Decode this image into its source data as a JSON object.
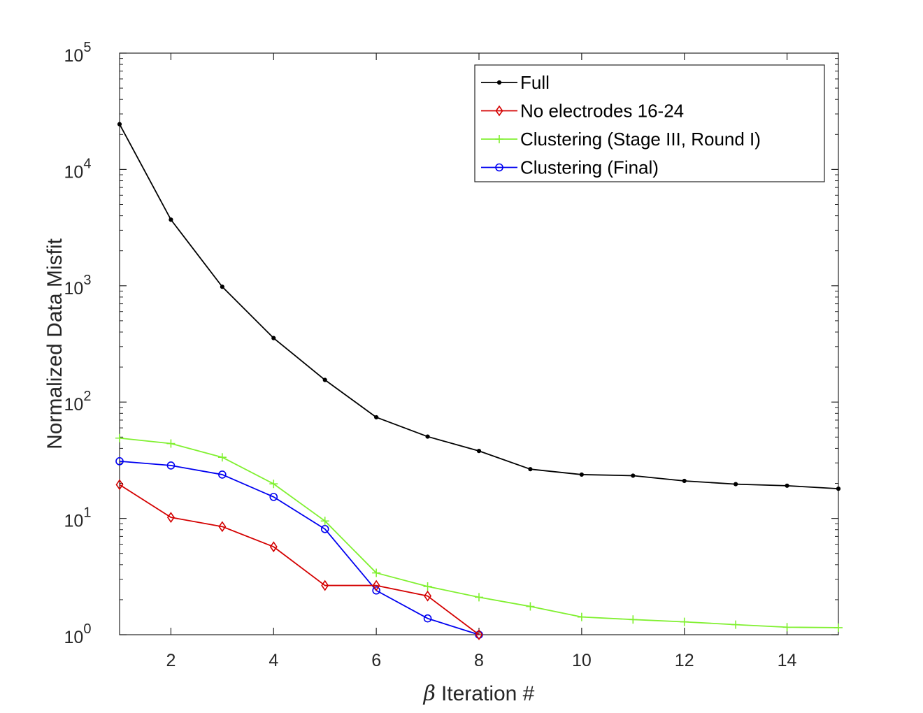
{
  "chart_data": {
    "type": "line",
    "title": "",
    "xlabel_symbol": "β",
    "xlabel": "Iteration #",
    "ylabel": "Normalized Data Misfit",
    "xlim": [
      1,
      15
    ],
    "ylim": [
      1,
      100000
    ],
    "yscale": "log",
    "x_ticks": [
      2,
      4,
      6,
      8,
      10,
      12,
      14
    ],
    "y_ticks": [
      1,
      10,
      100,
      1000,
      10000,
      100000
    ],
    "y_tick_labels": [
      {
        "base": "10",
        "exp": "0"
      },
      {
        "base": "10",
        "exp": "1"
      },
      {
        "base": "10",
        "exp": "2"
      },
      {
        "base": "10",
        "exp": "3"
      },
      {
        "base": "10",
        "exp": "4"
      },
      {
        "base": "10",
        "exp": "5"
      }
    ],
    "grid": false,
    "legend_position": "top-right",
    "series": [
      {
        "name": "Full",
        "color": "#000000",
        "marker": "dot",
        "x": [
          1,
          2,
          3,
          4,
          5,
          6,
          7,
          8,
          9,
          10,
          11,
          12,
          13,
          14,
          15
        ],
        "y": [
          24500,
          3700,
          980,
          355,
          155,
          74,
          50.5,
          38,
          26.5,
          23.8,
          23.3,
          21,
          19.7,
          19.1,
          18
        ]
      },
      {
        "name": "No electrodes 16-24",
        "color": "#d40000",
        "marker": "diamond",
        "x": [
          1,
          2,
          3,
          4,
          5,
          6,
          7,
          8
        ],
        "y": [
          19.5,
          10.2,
          8.5,
          5.7,
          2.65,
          2.65,
          2.15,
          1
        ]
      },
      {
        "name": "Clustering (Stage III, Round I)",
        "color": "#80f030",
        "marker": "plus",
        "x": [
          1,
          2,
          3,
          4,
          5,
          6,
          7,
          8,
          9,
          10,
          11,
          12,
          13,
          14,
          15
        ],
        "y": [
          49,
          44,
          33.5,
          19.8,
          9.5,
          3.4,
          2.6,
          2.1,
          1.75,
          1.42,
          1.35,
          1.29,
          1.22,
          1.16,
          1.15
        ]
      },
      {
        "name": "Clustering (Final)",
        "color": "#0000f0",
        "marker": "circle",
        "x": [
          1,
          2,
          3,
          4,
          5,
          6,
          7,
          8
        ],
        "y": [
          31,
          28.5,
          23.8,
          15.3,
          8.1,
          2.4,
          1.38,
          1
        ]
      }
    ]
  }
}
